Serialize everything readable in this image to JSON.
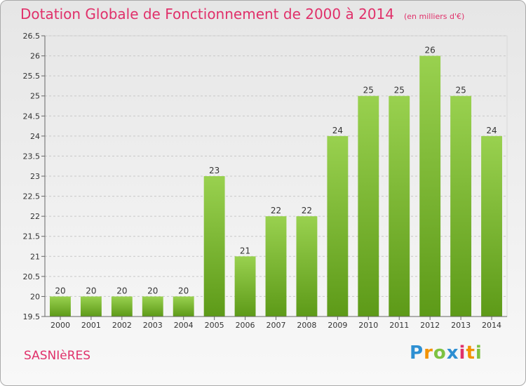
{
  "title": "Dotation Globale de Fonctionnement de 2000 à 2014",
  "subtitle": "(en milliers d'€)",
  "town": "SASNIèRES",
  "logo": {
    "letters": [
      "P",
      "r",
      "o",
      "x",
      "i",
      "t",
      "i"
    ],
    "colors": [
      "#2d8fd2",
      "#f39200",
      "#7dc242",
      "#2d8fd2",
      "#e0306a",
      "#f39200",
      "#7dc242"
    ]
  },
  "colors": {
    "bar_top": "#99d14f",
    "bar_bottom": "#5d9a18",
    "accent": "#e0306a"
  },
  "chart_data": {
    "type": "bar",
    "categories": [
      "2000",
      "2001",
      "2002",
      "2003",
      "2004",
      "2005",
      "2006",
      "2007",
      "2008",
      "2009",
      "2010",
      "2011",
      "2012",
      "2013",
      "2014"
    ],
    "values": [
      20,
      20,
      20,
      20,
      20,
      23,
      21,
      22,
      22,
      24,
      25,
      25,
      26,
      25,
      24
    ],
    "data_labels": [
      "20",
      "20",
      "20",
      "20",
      "20",
      "23",
      "21",
      "22",
      "22",
      "24",
      "25",
      "25",
      "26",
      "25",
      "24"
    ],
    "ylim": [
      19.5,
      26.5
    ],
    "yticks": [
      "19.5",
      "20",
      "20.5",
      "21",
      "21.5",
      "22",
      "22.5",
      "23",
      "23.5",
      "24",
      "24.5",
      "25",
      "25.5",
      "26",
      "26.5"
    ],
    "grid": true
  }
}
